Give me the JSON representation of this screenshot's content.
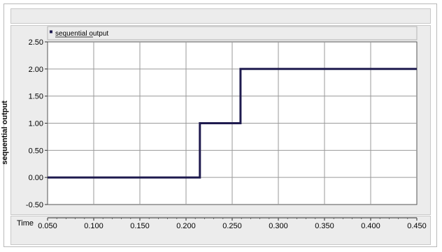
{
  "chart_data": {
    "type": "line",
    "step": true,
    "ylabel": "sequential output",
    "xlabel": "Time",
    "xlim": [
      0.05,
      0.45
    ],
    "ylim": [
      -0.5,
      2.5
    ],
    "x_ticks": [
      "0.050",
      "0.100",
      "0.150",
      "0.200",
      "0.250",
      "0.300",
      "0.350",
      "0.400",
      "0.450"
    ],
    "y_ticks": [
      "2.50",
      "2.00",
      "1.50",
      "1.00",
      "0.50",
      "0.00",
      "-0.50"
    ],
    "grid": true,
    "legend_position": "top-left",
    "series": [
      {
        "name": "sequential output",
        "color": "#1f1b4f",
        "x": [
          0.05,
          0.215,
          0.215,
          0.259,
          0.259,
          0.45
        ],
        "y": [
          0.0,
          0.0,
          1.0,
          1.0,
          2.0,
          2.0
        ]
      }
    ]
  }
}
